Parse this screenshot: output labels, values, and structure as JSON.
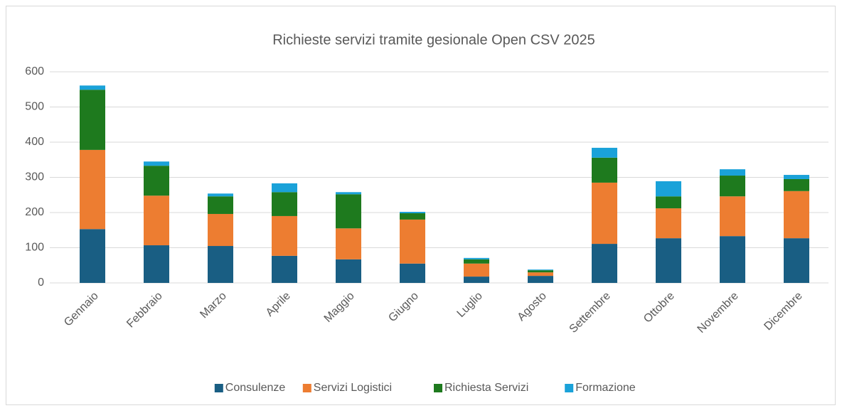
{
  "chart_data": {
    "type": "stacked_bar",
    "title": "Richieste servizi tramite gesionale Open CSV 2025",
    "categories": [
      "Gennaio",
      "Febbraio",
      "Marzo",
      "Aprile",
      "Maggio",
      "Giugno",
      "Luglio",
      "Agosto",
      "Settembre",
      "Ottobre",
      "Novembre",
      "Dicembre"
    ],
    "series": [
      {
        "name": "Consulenze",
        "color": "#195e83",
        "values": [
          153,
          107,
          105,
          77,
          67,
          55,
          18,
          20,
          111,
          127,
          133,
          127
        ]
      },
      {
        "name": "Servizi Logistici",
        "color": "#ed7d31",
        "values": [
          225,
          141,
          91,
          113,
          88,
          125,
          37,
          10,
          174,
          85,
          113,
          134
        ]
      },
      {
        "name": "Richiesta Servizi",
        "color": "#1e7a1e",
        "values": [
          171,
          85,
          50,
          68,
          97,
          18,
          12,
          6,
          71,
          34,
          59,
          34
        ]
      },
      {
        "name": "Formazione",
        "color": "#1aa2d9",
        "values": [
          12,
          12,
          8,
          25,
          6,
          4,
          4,
          2,
          28,
          43,
          18,
          12
        ]
      }
    ],
    "ylim": [
      0,
      600
    ],
    "yticks": [
      0,
      100,
      200,
      300,
      400,
      500,
      600
    ],
    "grid": true,
    "legend": "bottom"
  }
}
